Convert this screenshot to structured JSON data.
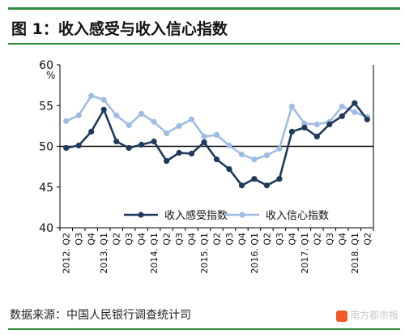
{
  "header": {
    "title": "图 1：收入感受与收入信心指数"
  },
  "footer": {
    "source": "数据来源：中国人民银行调查统计司",
    "watermark": "南方都市报"
  },
  "chart_data": {
    "type": "line",
    "unit_label": "%",
    "ylim": [
      40,
      60
    ],
    "yticks": [
      40,
      45,
      50,
      55,
      60
    ],
    "reference_line": 50,
    "grid": false,
    "legend_position": "bottom-center",
    "x_labels": [
      "2012. Q2",
      "Q3",
      "Q4",
      "2013. Q1",
      "Q2",
      "Q3",
      "Q4",
      "2014. Q1",
      "Q2",
      "Q3",
      "Q4",
      "2015. Q1",
      "Q2",
      "Q3",
      "Q4",
      "2016. Q1",
      "Q2",
      "Q3",
      "Q4",
      "2017. Q1",
      "Q2",
      "Q3",
      "Q4",
      "2018. Q1",
      "Q2"
    ],
    "series": [
      {
        "name": "收入感受指数",
        "color": "#1f3a5c",
        "values": [
          49.8,
          50.1,
          51.8,
          54.5,
          50.6,
          49.8,
          50.2,
          50.6,
          48.2,
          49.2,
          49.1,
          50.5,
          48.4,
          47.2,
          45.2,
          46.0,
          45.2,
          46.0,
          51.8,
          52.3,
          51.2,
          52.7,
          53.7,
          55.3,
          53.3
        ]
      },
      {
        "name": "收入信心指数",
        "color": "#9fbde3",
        "values": [
          53.1,
          53.8,
          56.2,
          55.7,
          53.8,
          52.6,
          54.0,
          53.0,
          51.6,
          52.5,
          53.3,
          51.2,
          51.4,
          50.1,
          49.0,
          48.4,
          48.9,
          49.7,
          54.9,
          52.8,
          52.7,
          53.0,
          54.9,
          54.2,
          53.6
        ]
      }
    ]
  }
}
